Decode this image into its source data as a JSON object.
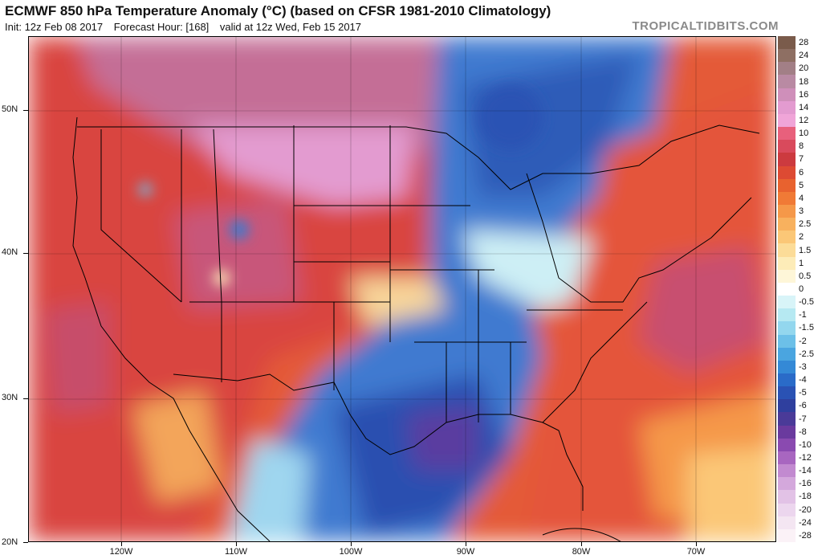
{
  "header": {
    "title": "ECMWF 850 hPa Temperature Anomaly (°C) (based on CFSR 1981-2010 Climatology)",
    "init": "Init: 12z Feb 08 2017",
    "forecast_hour": "Forecast Hour: [168]",
    "valid": "valid at 12z Wed, Feb 15 2017",
    "credit": "TROPICALTIDBITS.COM"
  },
  "map": {
    "lat_labels": [
      "50N",
      "40N",
      "30N",
      "20N"
    ],
    "lon_labels": [
      "120W",
      "110W",
      "100W",
      "90W",
      "80W",
      "70W"
    ]
  },
  "colorbar": {
    "labels": [
      "28",
      "24",
      "20",
      "18",
      "16",
      "14",
      "12",
      "10",
      "8",
      "7",
      "6",
      "5",
      "4",
      "3",
      "2.5",
      "2",
      "1.5",
      "1",
      "0.5",
      "0",
      "-0.5",
      "-1",
      "-1.5",
      "-2",
      "-2.5",
      "-3",
      "-4",
      "-5",
      "-6",
      "-7",
      "-8",
      "-10",
      "-12",
      "-14",
      "-16",
      "-18",
      "-20",
      "-24",
      "-28"
    ],
    "colors": [
      "#7a5b4b",
      "#8e6f63",
      "#a27f86",
      "#b98aa3",
      "#cf8fba",
      "#e39bd0",
      "#f0a5d8",
      "#e8607c",
      "#d94a5c",
      "#cc3a3f",
      "#dd4a33",
      "#e8622f",
      "#f07a36",
      "#f59849",
      "#f8b15e",
      "#fbc777",
      "#fcdc98",
      "#fdecb8",
      "#fef6d8",
      "#ffffff",
      "#d8f4f8",
      "#b6e9f2",
      "#93d7ee",
      "#6cc0e8",
      "#4aa5e0",
      "#3489d6",
      "#2a6bc8",
      "#2a52b4",
      "#2f3f9e",
      "#4a3a98",
      "#6a3a9e",
      "#8a4ab0",
      "#a866c0",
      "#c28ad0",
      "#d4a8dc",
      "#e2c2e6",
      "#ecd6ee",
      "#f4e6f2",
      "#fbf2f7"
    ]
  }
}
